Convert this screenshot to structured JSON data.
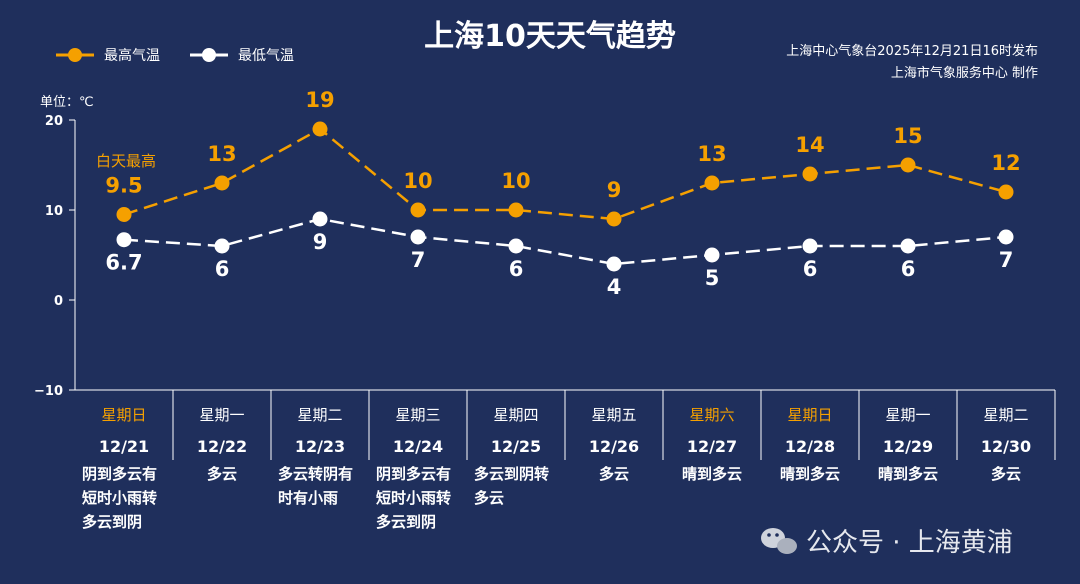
{
  "title": "上海10天天气趋势",
  "source_line1": "上海中心气象台2025年12月21日16时发布",
  "source_line2": "上海市气象服务中心  制作",
  "unit_label": "单位：℃",
  "legend": {
    "high": "最高气温",
    "low": "最低气温"
  },
  "daytime_note": "白天最高",
  "watermark": "公众号 · 上海黄浦",
  "colors": {
    "background": "#1f2f5c",
    "high": "#f5a000",
    "low": "#ffffff",
    "weekend": "#f5a000",
    "axis": "#ffffff"
  },
  "chart_data": {
    "type": "line",
    "ylim": [
      -10,
      20
    ],
    "yticks": [
      "20",
      "10",
      "0",
      "−10"
    ],
    "ytick_values": [
      20,
      10,
      0,
      -10
    ],
    "x": [
      "12/21",
      "12/22",
      "12/23",
      "12/24",
      "12/25",
      "12/26",
      "12/27",
      "12/28",
      "12/29",
      "12/30"
    ],
    "series": [
      {
        "name": "最高气温",
        "values": [
          9.5,
          13,
          19,
          10,
          10,
          9,
          13,
          14,
          15,
          12
        ],
        "labels": [
          "9.5",
          "13",
          "19",
          "10",
          "10",
          "9",
          "13",
          "14",
          "15",
          "12"
        ]
      },
      {
        "name": "最低气温",
        "values": [
          6.7,
          6,
          9,
          7,
          6,
          4,
          5,
          6,
          6,
          7
        ],
        "labels": [
          "6.7",
          "6",
          "9",
          "7",
          "6",
          "4",
          "5",
          "6",
          "6",
          "7"
        ]
      }
    ],
    "days": [
      {
        "weekday": "星期日",
        "date": "12/21",
        "weekend": true,
        "weather": [
          "阴到多云有",
          "短时小雨转",
          "多云到阴"
        ]
      },
      {
        "weekday": "星期一",
        "date": "12/22",
        "weekend": false,
        "weather": [
          "多云"
        ]
      },
      {
        "weekday": "星期二",
        "date": "12/23",
        "weekend": false,
        "weather": [
          "多云转阴有",
          "时有小雨"
        ]
      },
      {
        "weekday": "星期三",
        "date": "12/24",
        "weekend": false,
        "weather": [
          "阴到多云有",
          "短时小雨转",
          "多云到阴"
        ]
      },
      {
        "weekday": "星期四",
        "date": "12/25",
        "weekend": false,
        "weather": [
          "多云到阴转",
          "多云"
        ]
      },
      {
        "weekday": "星期五",
        "date": "12/26",
        "weekend": false,
        "weather": [
          "多云"
        ]
      },
      {
        "weekday": "星期六",
        "date": "12/27",
        "weekend": true,
        "weather": [
          "晴到多云"
        ]
      },
      {
        "weekday": "星期日",
        "date": "12/28",
        "weekend": true,
        "weather": [
          "晴到多云"
        ]
      },
      {
        "weekday": "星期一",
        "date": "12/29",
        "weekend": false,
        "weather": [
          "晴到多云"
        ]
      },
      {
        "weekday": "星期二",
        "date": "12/30",
        "weekend": false,
        "weather": [
          "多云"
        ]
      }
    ]
  }
}
